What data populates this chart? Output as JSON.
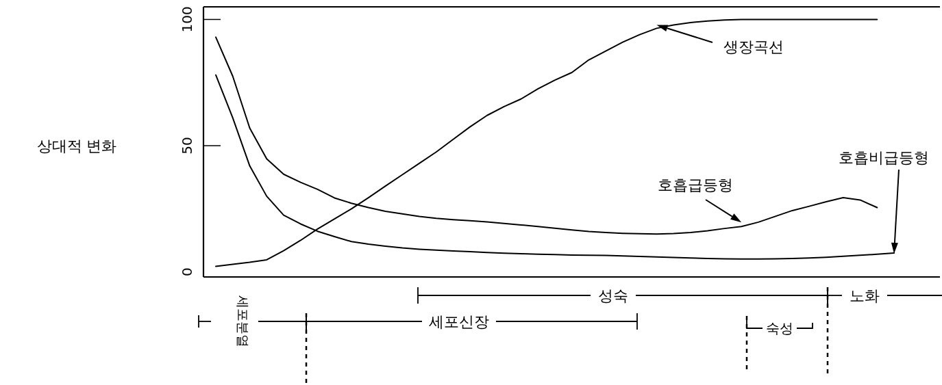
{
  "chart_data": {
    "type": "line",
    "ylabel": "상대적 변화",
    "categories": [
      null,
      null,
      null,
      null,
      null,
      null,
      null,
      null,
      null,
      null,
      null,
      null,
      null,
      null,
      null,
      null,
      null,
      null,
      null,
      null,
      null,
      null,
      null,
      null,
      null,
      null,
      null,
      null,
      null,
      null,
      null,
      null,
      null,
      null,
      null,
      null,
      null,
      null,
      null,
      null,
      null
    ],
    "ylim": [
      -2,
      105
    ],
    "yticks": [
      0,
      50,
      100
    ],
    "series": [
      {
        "name": "생장곡선",
        "color": "#000000",
        "values": [
          2.2,
          3,
          3.8,
          4.8,
          8.4,
          12.5,
          17,
          21,
          25,
          29.4,
          34,
          38.5,
          43,
          47.5,
          52.5,
          57.5,
          62,
          65.5,
          68.5,
          72.5,
          76,
          79,
          84,
          87.5,
          91,
          94,
          96.5,
          97.8,
          98.8,
          99.4,
          99.8,
          100,
          100,
          100,
          100,
          100,
          100,
          100,
          100,
          100,
          null
        ]
      },
      {
        "name": "호흡급등형",
        "color": "#000000",
        "values": [
          93,
          77.5,
          57,
          44.8,
          38.7,
          35.5,
          32.7,
          29.3,
          27.2,
          25.5,
          24,
          23,
          22,
          21.2,
          20.7,
          20.3,
          19.8,
          19.2,
          18.6,
          18,
          17.3,
          16.6,
          16,
          15.6,
          15.3,
          15.1,
          15,
          15.2,
          15.6,
          16.3,
          17.2,
          18,
          19.7,
          22,
          24.3,
          26,
          27.8,
          29.4,
          28.5,
          25.5,
          null
        ]
      },
      {
        "name": "호흡비급등형",
        "color": "#000000",
        "values": [
          78,
          61,
          42,
          30,
          22.5,
          19,
          16.1,
          14,
          12,
          11,
          10.2,
          9.5,
          9,
          8.6,
          8.3,
          8,
          7.7,
          7.4,
          7.2,
          7,
          6.9,
          6.7,
          6.6,
          6.5,
          6.3,
          6.1,
          5.9,
          5.7,
          5.5,
          5.3,
          5.2,
          5.1,
          5.1,
          5.2,
          5.3,
          5.5,
          5.8,
          6.2,
          6.6,
          7,
          7.5
        ]
      }
    ],
    "annotations": [
      "세포분열",
      "세포신장",
      "성숙",
      "숙성",
      "노화"
    ]
  }
}
